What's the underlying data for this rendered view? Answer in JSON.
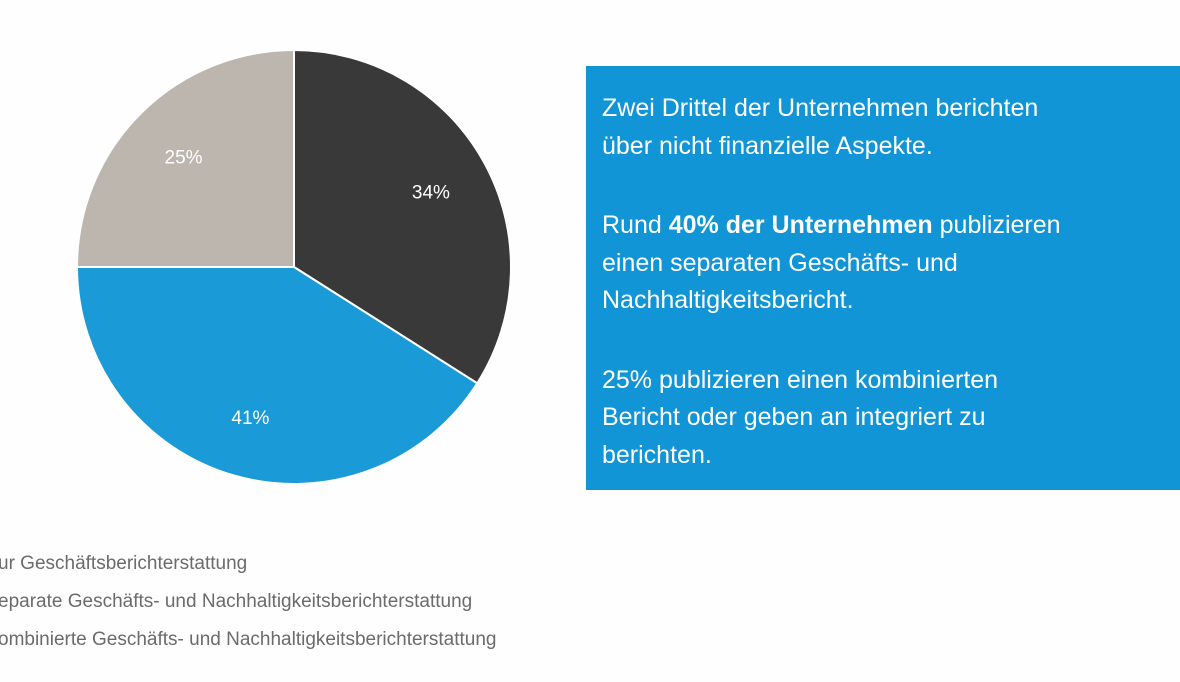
{
  "chart_data": {
    "type": "pie",
    "start_angle": "12 o'clock, clockwise",
    "slices": [
      {
        "label": "34%",
        "value": 34,
        "color": "#3a3939"
      },
      {
        "label": "41%",
        "value": 41,
        "color": "#1b9ad8"
      },
      {
        "label": "25%",
        "value": 25,
        "color": "#bcb6ae"
      }
    ],
    "legend": [
      "ur Geschäftsberichterstattung",
      "eparate Geschäfts- und Nachhaltigkeitsberichterstattung",
      "ombinierte Geschäfts- und Nachhaltigkeitsberichterstattung"
    ],
    "legend_placement": "bottom-left"
  },
  "info_box": {
    "color": "#1195d6",
    "p1": "Zwei Drittel der Unternehmen berichten",
    "p1b": "über nicht finanzielle Aspekte.",
    "p2_pre": "Rund ",
    "p2_bold": "40%  der Unternehmen",
    "p2_post": " publizieren",
    "p2b": "einen separaten Geschäfts- und",
    "p2c": "Nachhaltigkeitsbericht.",
    "p3": "25% publizieren einen kombinierten",
    "p3b": "Bericht oder geben an integriert zu",
    "p3c": "berichten."
  }
}
